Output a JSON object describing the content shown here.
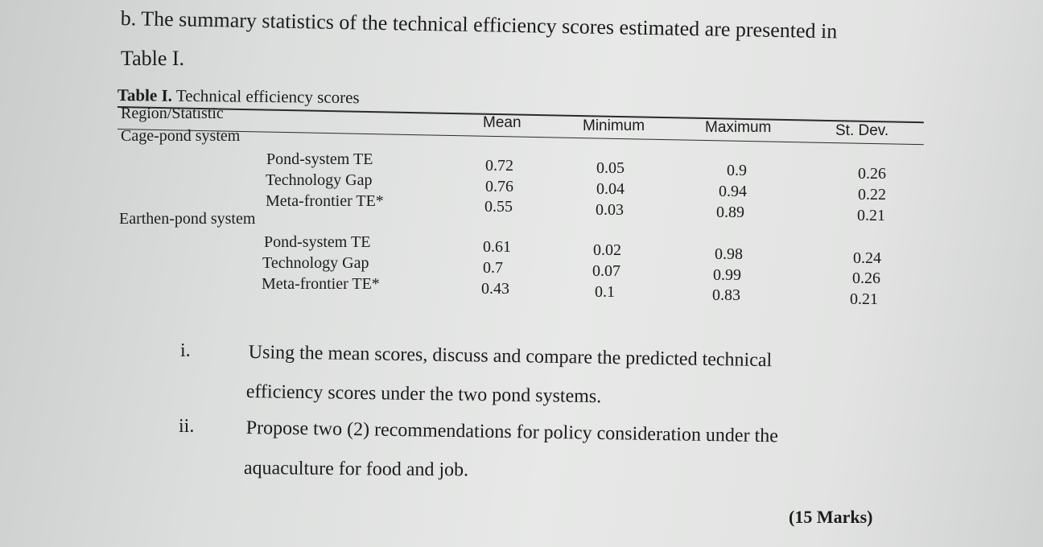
{
  "intro": {
    "line1": "b. The summary statistics of the technical efficiency scores estimated are presented in",
    "line2": "Table I."
  },
  "table": {
    "caption_bold": "Table I.",
    "caption_rest": " Technical efficiency scores",
    "header": {
      "stat": "Region/Statistic",
      "mean": "Mean",
      "minimum": "Minimum",
      "maximum": "Maximum",
      "stdev": "St. Dev."
    },
    "groups": [
      {
        "name": "Cage-pond system",
        "rows": [
          {
            "label": "Pond-system TE",
            "mean": "0.72",
            "min": "0.05",
            "max": "0.9",
            "sd": "0.26"
          },
          {
            "label": "Technology Gap",
            "mean": "0.76",
            "min": "0.04",
            "max": "0.94",
            "sd": "0.22"
          },
          {
            "label": "Meta-frontier TE*",
            "mean": "0.55",
            "min": "0.03",
            "max": "0.89",
            "sd": "0.21"
          }
        ]
      },
      {
        "name": "Earthen-pond system",
        "rows": [
          {
            "label": "Pond-system TE",
            "mean": "0.61",
            "min": "0.02",
            "max": "0.98",
            "sd": "0.24"
          },
          {
            "label": "Technology Gap",
            "mean": "0.7",
            "min": "0.07",
            "max": "0.99",
            "sd": "0.26"
          },
          {
            "label": "Meta-frontier TE*",
            "mean": "0.43",
            "min": "0.1",
            "max": "0.83",
            "sd": "0.21"
          }
        ]
      }
    ]
  },
  "questions": [
    {
      "num": "i.",
      "line1": "Using the mean scores, discuss and compare the predicted technical",
      "line2": "efficiency scores under the two pond systems."
    },
    {
      "num": "ii.",
      "line1": "Propose two (2) recommendations for policy consideration under the",
      "line2": "aquaculture for food and job."
    }
  ],
  "marks": "(15 Marks)"
}
